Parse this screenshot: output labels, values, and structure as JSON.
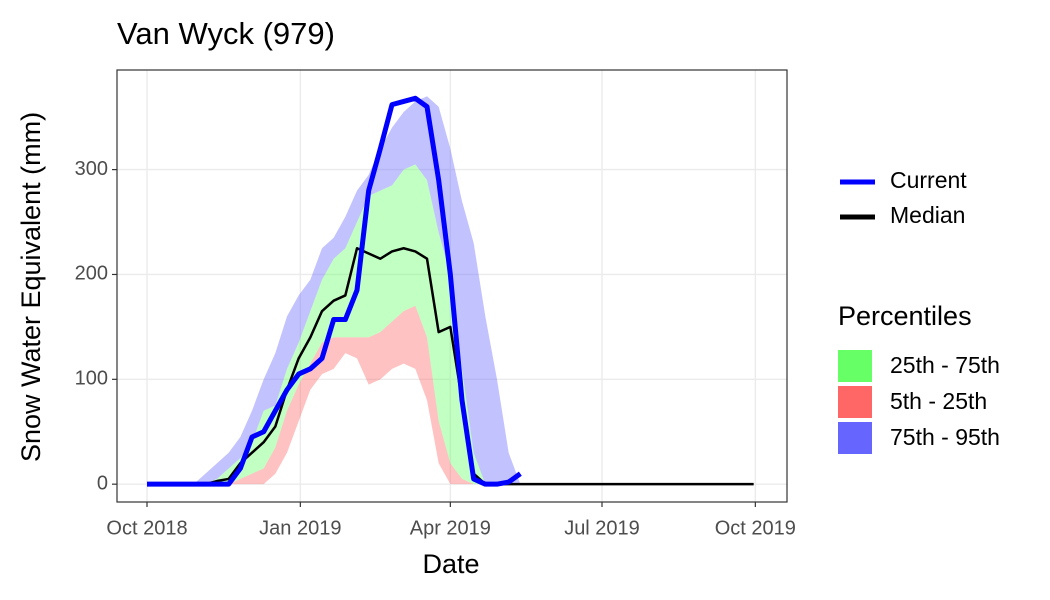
{
  "chart_data": {
    "type": "line",
    "title": "Van Wyck (979)",
    "x_label": "Date",
    "y_label": "Snow Water Equivalent (mm)",
    "x": [
      "2018-10-01",
      "2018-10-08",
      "2018-10-15",
      "2018-10-22",
      "2018-10-29",
      "2018-11-05",
      "2018-11-12",
      "2018-11-19",
      "2018-11-26",
      "2018-12-03",
      "2018-12-10",
      "2018-12-17",
      "2018-12-24",
      "2018-12-31",
      "2019-01-07",
      "2019-01-14",
      "2019-01-21",
      "2019-01-28",
      "2019-02-04",
      "2019-02-11",
      "2019-02-18",
      "2019-02-25",
      "2019-03-04",
      "2019-03-11",
      "2019-03-18",
      "2019-03-25",
      "2019-04-01",
      "2019-04-08",
      "2019-04-15",
      "2019-04-22",
      "2019-04-29",
      "2019-05-06",
      "2019-05-13",
      "2019-05-20",
      "2019-05-27",
      "2019-06-03",
      "2019-06-10",
      "2019-06-17",
      "2019-06-24",
      "2019-07-01",
      "2019-07-08",
      "2019-07-15",
      "2019-07-22",
      "2019-07-29",
      "2019-08-05",
      "2019-08-12",
      "2019-08-19",
      "2019-08-26",
      "2019-09-02",
      "2019-09-09",
      "2019-09-16",
      "2019-09-23",
      "2019-09-30"
    ],
    "legend_title": "Percentiles",
    "bands": [
      {
        "name": "25th - 75th",
        "color": "#66ff66",
        "low": [
          0,
          0,
          0,
          0,
          0,
          0,
          0,
          0,
          5,
          10,
          15,
          35,
          70,
          95,
          115,
          135,
          140,
          140,
          140,
          140,
          145,
          155,
          165,
          170,
          140,
          60,
          20,
          5,
          0,
          0,
          0,
          0,
          0,
          0,
          0,
          0,
          0,
          0,
          0,
          0,
          0,
          0,
          0,
          0,
          0,
          0,
          0,
          0,
          0,
          0,
          0,
          0,
          0
        ],
        "high": [
          0,
          0,
          0,
          0,
          0,
          0,
          5,
          15,
          25,
          40,
          70,
          75,
          110,
          135,
          165,
          195,
          215,
          225,
          250,
          275,
          280,
          285,
          300,
          305,
          290,
          240,
          200,
          110,
          30,
          0,
          0,
          0,
          0,
          0,
          0,
          0,
          0,
          0,
          0,
          0,
          0,
          0,
          0,
          0,
          0,
          0,
          0,
          0,
          0,
          0,
          0,
          0,
          0
        ]
      },
      {
        "name": "5th - 25th",
        "color": "#ff6666",
        "low": [
          0,
          0,
          0,
          0,
          0,
          0,
          0,
          0,
          0,
          0,
          0,
          10,
          30,
          60,
          90,
          105,
          110,
          125,
          120,
          95,
          100,
          110,
          115,
          110,
          80,
          20,
          0,
          0,
          0,
          0,
          0,
          0,
          0,
          0,
          0,
          0,
          0,
          0,
          0,
          0,
          0,
          0,
          0,
          0,
          0,
          0,
          0,
          0,
          0,
          0,
          0,
          0,
          0
        ],
        "high": [
          0,
          0,
          0,
          0,
          0,
          0,
          0,
          0,
          5,
          10,
          15,
          35,
          70,
          95,
          115,
          135,
          140,
          140,
          140,
          140,
          145,
          155,
          165,
          170,
          140,
          60,
          20,
          5,
          0,
          0,
          0,
          0,
          0,
          0,
          0,
          0,
          0,
          0,
          0,
          0,
          0,
          0,
          0,
          0,
          0,
          0,
          0,
          0,
          0,
          0,
          0,
          0,
          0
        ]
      },
      {
        "name": "75th - 95th",
        "color": "#6666ff",
        "low": [
          0,
          0,
          0,
          0,
          0,
          0,
          5,
          15,
          25,
          40,
          70,
          75,
          110,
          135,
          165,
          195,
          215,
          225,
          250,
          275,
          280,
          285,
          300,
          305,
          290,
          240,
          200,
          110,
          30,
          0,
          0,
          0,
          0,
          0,
          0,
          0,
          0,
          0,
          0,
          0,
          0,
          0,
          0,
          0,
          0,
          0,
          0,
          0,
          0,
          0,
          0,
          0,
          0
        ],
        "high": [
          0,
          0,
          0,
          0,
          0,
          10,
          20,
          30,
          45,
          70,
          100,
          125,
          160,
          180,
          195,
          225,
          235,
          255,
          280,
          295,
          320,
          340,
          355,
          365,
          370,
          360,
          320,
          270,
          230,
          160,
          100,
          30,
          0,
          0,
          0,
          0,
          0,
          0,
          0,
          0,
          0,
          0,
          0,
          0,
          0,
          0,
          0,
          0,
          0,
          0,
          0,
          0,
          0
        ]
      }
    ],
    "series": [
      {
        "name": "Current",
        "color": "#0000ff",
        "values": [
          0,
          0,
          0,
          0,
          0,
          0,
          0,
          0,
          15,
          45,
          50,
          70,
          90,
          105,
          110,
          120,
          157,
          157,
          185,
          280,
          320,
          362,
          365,
          368,
          360,
          290,
          200,
          80,
          5,
          0,
          0,
          2,
          10,
          null,
          null,
          null,
          null,
          null,
          null,
          null,
          null,
          null,
          null,
          null,
          null,
          null,
          null,
          null,
          null,
          null,
          null,
          null,
          null
        ]
      },
      {
        "name": "Median",
        "color": "#000000",
        "values": [
          0,
          0,
          0,
          0,
          0,
          0,
          3,
          5,
          20,
          30,
          40,
          55,
          90,
          120,
          140,
          165,
          175,
          180,
          225,
          220,
          215,
          222,
          225,
          222,
          215,
          145,
          150,
          80,
          10,
          0,
          0,
          0,
          0,
          0,
          0,
          0,
          0,
          0,
          0,
          0,
          0,
          0,
          0,
          0,
          0,
          0,
          0,
          0,
          0,
          0,
          0,
          0,
          0
        ]
      }
    ],
    "xlim": [
      "2018-09-13",
      "2019-10-20"
    ],
    "xticks": [
      {
        "value": "2018-10-01",
        "label": "Oct 2018"
      },
      {
        "value": "2019-01-01",
        "label": "Jan 2019"
      },
      {
        "value": "2019-04-01",
        "label": "Apr 2019"
      },
      {
        "value": "2019-07-01",
        "label": "Jul 2019"
      },
      {
        "value": "2019-10-01",
        "label": "Oct 2019"
      }
    ],
    "ylim": [
      -17,
      395
    ],
    "yticks": [
      0,
      100,
      200,
      300
    ],
    "grid": true
  }
}
